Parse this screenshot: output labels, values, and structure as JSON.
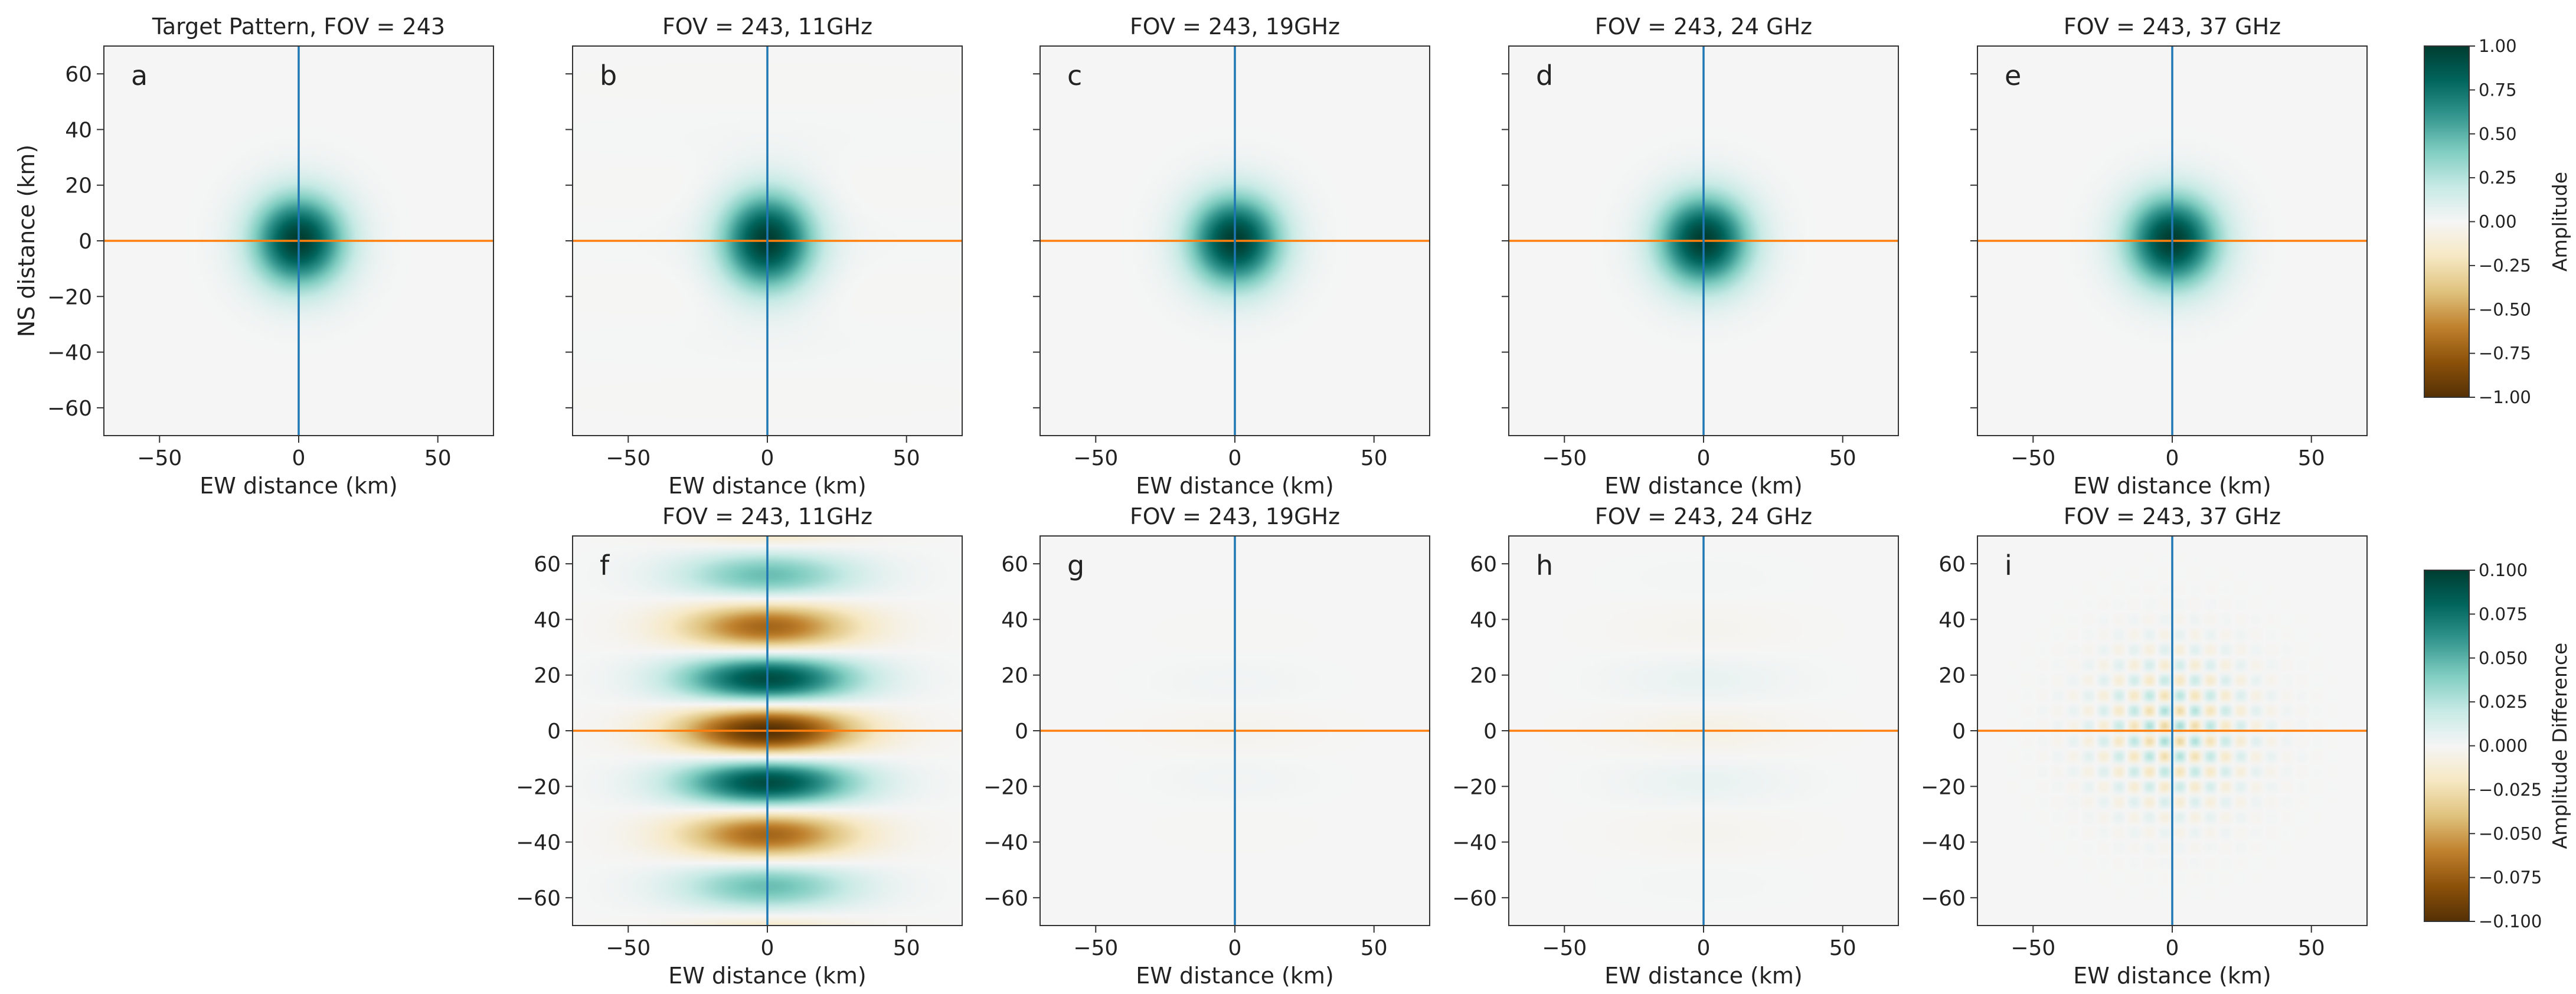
{
  "chart_data": {
    "type": "heatmap",
    "panels": [
      {
        "id": "a",
        "row": 0,
        "col": 0,
        "letter": "a",
        "title": "Target Pattern, FOV = 243",
        "xlabel": "EW distance (km)",
        "ylabel": "NS distance (km)",
        "kind": "beam",
        "sigma_x": 11.5,
        "sigma_y": 11.5,
        "ring_amp": 0,
        "ring_period": 40,
        "diff_amp": 0,
        "checker_amp": 0
      },
      {
        "id": "b",
        "row": 0,
        "col": 1,
        "letter": "b",
        "title": "FOV = 243, 11GHz",
        "xlabel": "EW distance (km)",
        "ylabel": "",
        "kind": "beam",
        "sigma_x": 11.5,
        "sigma_y": 12.2,
        "ring_amp": 0.02,
        "ring_period": 38,
        "diff_amp": 0,
        "checker_amp": 0
      },
      {
        "id": "c",
        "row": 0,
        "col": 2,
        "letter": "c",
        "title": "FOV = 243, 19GHz",
        "xlabel": "EW distance (km)",
        "ylabel": "",
        "kind": "beam",
        "sigma_x": 11.5,
        "sigma_y": 11.5,
        "ring_amp": 0,
        "ring_period": 40,
        "diff_amp": 0,
        "checker_amp": 0
      },
      {
        "id": "d",
        "row": 0,
        "col": 3,
        "letter": "d",
        "title": "FOV = 243, 24 GHz",
        "xlabel": "EW distance (km)",
        "ylabel": "",
        "kind": "beam",
        "sigma_x": 11.5,
        "sigma_y": 11.5,
        "ring_amp": 0,
        "ring_period": 40,
        "diff_amp": 0,
        "checker_amp": 0
      },
      {
        "id": "e",
        "row": 0,
        "col": 4,
        "letter": "e",
        "title": "FOV = 243, 37 GHz",
        "xlabel": "EW distance (km)",
        "ylabel": "",
        "kind": "beam",
        "sigma_x": 11.5,
        "sigma_y": 11.5,
        "ring_amp": 0,
        "ring_period": 40,
        "diff_amp": 0,
        "checker_amp": 0
      },
      {
        "id": "f",
        "row": 1,
        "col": 1,
        "letter": "f",
        "title": "FOV = 243, 11GHz",
        "xlabel": "EW distance (km)",
        "ylabel": "",
        "kind": "diff",
        "diff_amp": 0.1,
        "ring_period": 38,
        "sigma_x": 22,
        "sigma_y": 45,
        "checker_amp": 0
      },
      {
        "id": "g",
        "row": 1,
        "col": 2,
        "letter": "g",
        "title": "FOV = 243, 19GHz",
        "xlabel": "EW distance (km)",
        "ylabel": "",
        "kind": "diff",
        "diff_amp": 0.003,
        "ring_period": 38,
        "sigma_x": 20,
        "sigma_y": 20,
        "checker_amp": 0
      },
      {
        "id": "h",
        "row": 1,
        "col": 3,
        "letter": "h",
        "title": "FOV = 243, 24 GHz",
        "xlabel": "EW distance (km)",
        "ylabel": "",
        "kind": "diff",
        "diff_amp": 0.006,
        "ring_period": 38,
        "sigma_x": 22,
        "sigma_y": 30,
        "checker_amp": 0
      },
      {
        "id": "i",
        "row": 1,
        "col": 4,
        "letter": "i",
        "title": "FOV = 243, 37 GHz",
        "xlabel": "EW distance (km)",
        "ylabel": "",
        "kind": "diff",
        "diff_amp": 0,
        "ring_period": 38,
        "sigma_x": 20,
        "sigma_y": 20,
        "checker_amp": 0.03
      }
    ],
    "xlim": [
      -70,
      70
    ],
    "ylim": [
      -70,
      70
    ],
    "xticks": [
      -50,
      0,
      50
    ],
    "yticks": [
      -60,
      -40,
      -20,
      0,
      20,
      40,
      60
    ],
    "crosshair": {
      "vertical_color": "#1f77b4",
      "horizontal_color": "#ff7f0e",
      "value_km": 0
    },
    "colorbars": [
      {
        "id": "amp",
        "label": "Amplitude",
        "range": [
          -1.0,
          1.0
        ],
        "ticks": [
          "1.00",
          "0.75",
          "0.50",
          "0.25",
          "0.00",
          "−0.25",
          "−0.50",
          "−0.75",
          "−1.00"
        ]
      },
      {
        "id": "diff",
        "label": "Amplitude Difference",
        "range": [
          -0.1,
          0.1
        ],
        "ticks": [
          "0.100",
          "0.075",
          "0.050",
          "0.025",
          "0.000",
          "−0.025",
          "−0.050",
          "−0.075",
          "−0.100"
        ]
      }
    ],
    "colormap": "BrBG",
    "colormap_stops": [
      "#543005",
      "#8c510a",
      "#bf812d",
      "#dfc27d",
      "#f6e8c3",
      "#f5f5f5",
      "#c7eae5",
      "#80cdc1",
      "#35978f",
      "#01665e",
      "#003c30"
    ]
  }
}
